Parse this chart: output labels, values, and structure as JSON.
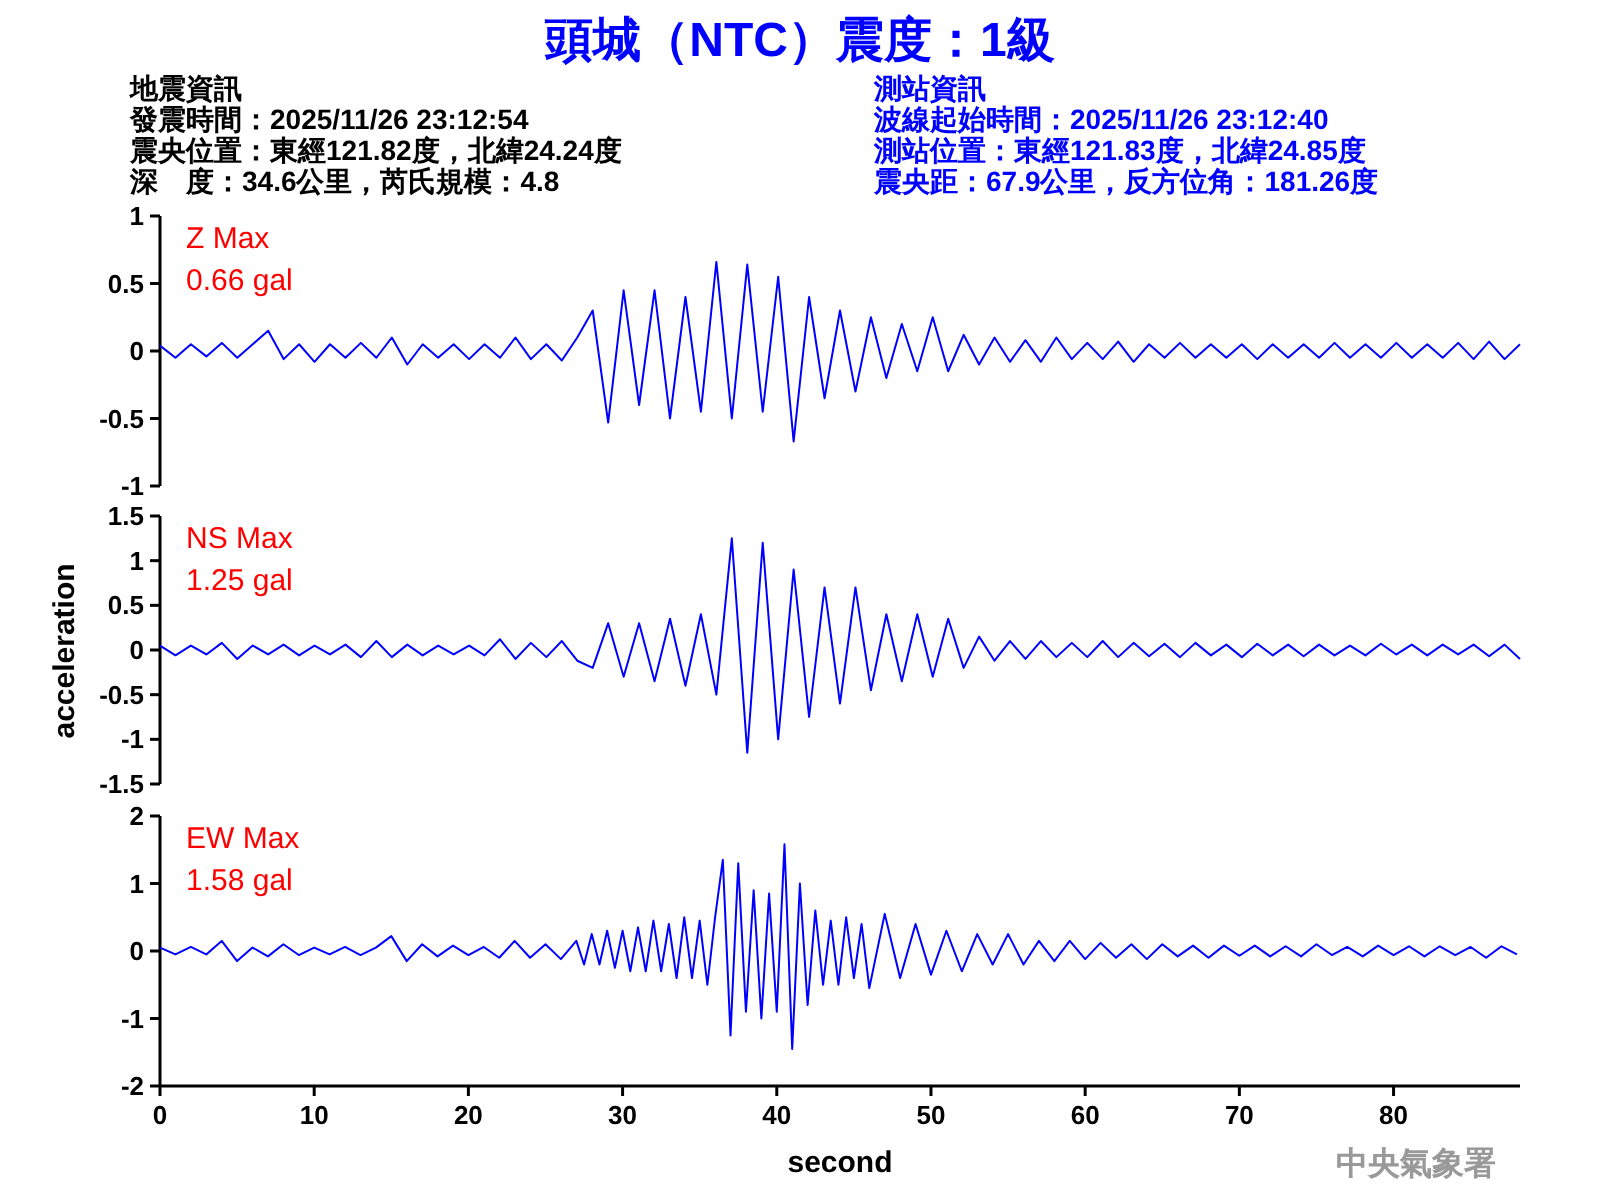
{
  "chart_data": [
    {
      "type": "line",
      "title": "頭城（NTC）震度：1級",
      "ylim": [
        -1,
        1
      ],
      "yticks": [
        -1,
        -0.5,
        0,
        0.5,
        1
      ],
      "tick_labels": "y",
      "annotations": [
        "Z Max",
        "0.66 gal",
        "地震資訊",
        "發震時間：2025/11/26 23:12:54",
        "震央位置：東經121.82度，北緯24.24度",
        "深　度：34.6公里，芮氏規模：4.8",
        "測站資訊",
        "波線起始時間：2025/11/26 23:12:40",
        "測站位置：東經121.83度，北緯24.85度",
        "震央距：67.9公里，反方位角：181.26度"
      ],
      "categories": [
        null,
        null,
        null,
        null,
        null,
        null,
        null,
        null,
        null,
        null,
        null,
        null,
        null,
        null,
        null,
        null,
        null,
        null,
        null,
        null,
        null,
        null,
        null,
        null,
        null,
        null,
        null,
        null,
        null,
        null,
        null,
        null,
        null,
        null,
        null,
        null,
        null,
        null,
        null,
        null,
        null,
        null,
        null,
        null,
        null,
        null,
        null,
        null,
        null,
        null,
        null,
        null,
        null,
        null,
        null,
        null,
        null,
        null,
        null,
        null,
        null,
        null,
        null,
        null,
        null,
        null,
        null,
        null,
        null,
        null,
        null,
        null,
        null,
        null,
        null,
        null,
        null,
        null,
        null,
        null,
        null,
        null,
        null,
        null,
        null,
        null,
        null,
        null,
        null
      ],
      "series": [
        {
          "color": "#0000ff",
          "values": [
            0.04,
            -0.05,
            0.05,
            -0.04,
            0.06,
            -0.05,
            0.05,
            0.15,
            -0.06,
            0.05,
            -0.08,
            0.05,
            -0.05,
            0.06,
            -0.05,
            0.1,
            -0.1,
            0.05,
            -0.05,
            0.05,
            -0.06,
            0.05,
            -0.05,
            0.1,
            -0.06,
            0.05,
            -0.07,
            0.1,
            0.3,
            -0.53,
            0.45,
            -0.4,
            0.45,
            -0.5,
            0.4,
            -0.45,
            0.66,
            -0.5,
            0.64,
            -0.45,
            0.55,
            -0.67,
            0.4,
            -0.35,
            0.3,
            -0.3,
            0.25,
            -0.2,
            0.2,
            -0.15,
            0.25,
            -0.15,
            0.12,
            -0.1,
            0.1,
            -0.08,
            0.08,
            -0.08,
            0.1,
            -0.06,
            0.06,
            -0.06,
            0.07,
            -0.08,
            0.05,
            -0.05,
            0.06,
            -0.05,
            0.05,
            -0.05,
            0.05,
            -0.06,
            0.05,
            -0.05,
            0.05,
            -0.05,
            0.06,
            -0.05,
            0.05,
            -0.05,
            0.06,
            -0.05,
            0.05,
            -0.05,
            0.06,
            -0.06,
            0.07,
            -0.06,
            0.05
          ]
        }
      ]
    },
    {
      "type": "line",
      "ylabel": "acceleration",
      "ylim": [
        -1.5,
        1.5
      ],
      "yticks": [
        -1.5,
        -1,
        -0.5,
        0,
        0.5,
        1,
        1.5
      ],
      "tick_labels": "y",
      "annotations": [
        "NS Max",
        "1.25 gal"
      ],
      "categories": [
        null,
        null,
        null,
        null,
        null,
        null,
        null,
        null,
        null,
        null,
        null,
        null,
        null,
        null,
        null,
        null,
        null,
        null,
        null,
        null,
        null,
        null,
        null,
        null,
        null,
        null,
        null,
        null,
        null,
        null,
        null,
        null,
        null,
        null,
        null,
        null,
        null,
        null,
        null,
        null,
        null,
        null,
        null,
        null,
        null,
        null,
        null,
        null,
        null,
        null,
        null,
        null,
        null,
        null,
        null,
        null,
        null,
        null,
        null,
        null,
        null,
        null,
        null,
        null,
        null,
        null,
        null,
        null,
        null,
        null,
        null,
        null,
        null,
        null,
        null,
        null,
        null,
        null,
        null,
        null,
        null,
        null,
        null,
        null,
        null,
        null,
        null,
        null,
        null
      ],
      "series": [
        {
          "color": "#0000ff",
          "values": [
            0.05,
            -0.06,
            0.05,
            -0.05,
            0.08,
            -0.1,
            0.05,
            -0.05,
            0.06,
            -0.06,
            0.05,
            -0.05,
            0.06,
            -0.08,
            0.1,
            -0.08,
            0.06,
            -0.06,
            0.05,
            -0.05,
            0.05,
            -0.06,
            0.12,
            -0.1,
            0.08,
            -0.08,
            0.1,
            -0.12,
            -0.2,
            0.3,
            -0.3,
            0.3,
            -0.35,
            0.35,
            -0.4,
            0.4,
            -0.5,
            1.25,
            -1.15,
            1.2,
            -1.0,
            0.9,
            -0.75,
            0.7,
            -0.6,
            0.7,
            -0.45,
            0.4,
            -0.35,
            0.4,
            -0.3,
            0.35,
            -0.2,
            0.15,
            -0.12,
            0.1,
            -0.1,
            0.1,
            -0.08,
            0.08,
            -0.08,
            0.1,
            -0.08,
            0.08,
            -0.07,
            0.07,
            -0.08,
            0.08,
            -0.06,
            0.06,
            -0.08,
            0.07,
            -0.06,
            0.06,
            -0.07,
            0.06,
            -0.06,
            0.05,
            -0.06,
            0.07,
            -0.05,
            0.06,
            -0.06,
            0.06,
            -0.05,
            0.06,
            -0.07,
            0.06,
            -0.1
          ]
        }
      ]
    },
    {
      "type": "line",
      "xlabel": "second",
      "xlim": [
        0,
        88.2
      ],
      "ylim": [
        -2,
        2
      ],
      "yticks": [
        -2,
        -1,
        0,
        1,
        2
      ],
      "xticks": [
        0,
        10,
        20,
        30,
        40,
        50,
        60,
        70,
        80
      ],
      "annotations": [
        "EW Max",
        "1.58 gal",
        "中央氣象署"
      ],
      "series": [
        {
          "color": "#0000ff",
          "x": [
            0,
            1,
            2,
            3,
            4,
            5,
            6,
            7,
            8,
            9,
            10,
            11,
            12,
            13,
            14,
            15,
            16,
            17,
            18,
            19,
            20,
            21,
            22,
            23,
            24,
            25,
            26,
            27,
            27.5,
            28,
            28.5,
            29,
            29.5,
            30,
            30.5,
            31,
            31.5,
            32,
            32.5,
            33,
            33.5,
            34,
            34.5,
            35,
            35.5,
            36,
            36.5,
            37,
            37.5,
            38,
            38.5,
            39,
            39.5,
            40,
            40.5,
            41,
            41.5,
            42,
            42.5,
            43,
            43.5,
            44,
            44.5,
            45,
            45.5,
            46,
            47,
            48,
            49,
            50,
            51,
            52,
            53,
            54,
            55,
            56,
            57,
            58,
            59,
            60,
            61,
            62,
            63,
            64,
            65,
            66,
            67,
            68,
            69,
            70,
            71,
            72,
            73,
            74,
            75,
            76,
            77,
            78,
            79,
            80,
            81,
            82,
            83,
            84,
            85,
            86,
            87,
            88
          ],
          "values": [
            0.05,
            -0.05,
            0.06,
            -0.05,
            0.15,
            -0.15,
            0.05,
            -0.08,
            0.1,
            -0.06,
            0.05,
            -0.05,
            0.06,
            -0.06,
            0.05,
            0.22,
            -0.15,
            0.1,
            -0.08,
            0.08,
            -0.06,
            0.06,
            -0.1,
            0.15,
            -0.1,
            0.1,
            -0.12,
            0.15,
            -0.2,
            0.25,
            -0.2,
            0.3,
            -0.25,
            0.3,
            -0.3,
            0.35,
            -0.3,
            0.45,
            -0.3,
            0.4,
            -0.4,
            0.5,
            -0.4,
            0.45,
            -0.5,
            0.5,
            1.35,
            -1.25,
            1.3,
            -0.9,
            0.9,
            -1.0,
            0.85,
            -0.9,
            1.58,
            -1.45,
            1.0,
            -0.8,
            0.6,
            -0.5,
            0.45,
            -0.5,
            0.5,
            -0.4,
            0.4,
            -0.55,
            0.55,
            -0.4,
            0.4,
            -0.35,
            0.3,
            -0.3,
            0.25,
            -0.2,
            0.25,
            -0.2,
            0.15,
            -0.15,
            0.15,
            -0.12,
            0.12,
            -0.1,
            0.1,
            -0.12,
            0.1,
            -0.08,
            0.08,
            -0.1,
            0.08,
            -0.07,
            0.08,
            -0.08,
            0.07,
            -0.08,
            0.1,
            -0.06,
            0.06,
            -0.08,
            0.08,
            -0.06,
            0.07,
            -0.08,
            0.07,
            -0.06,
            0.06,
            -0.1,
            0.07,
            -0.05
          ]
        }
      ]
    }
  ]
}
